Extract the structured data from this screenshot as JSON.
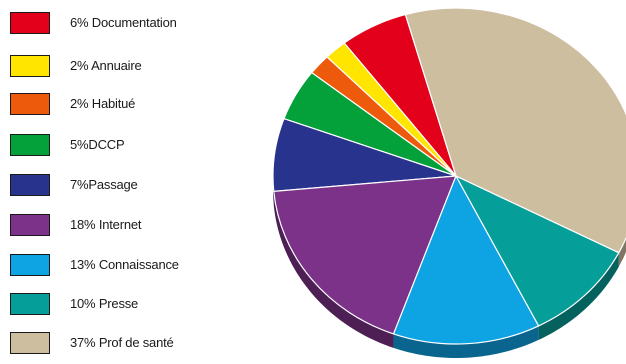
{
  "chart_data": {
    "type": "pie",
    "title": "",
    "legend_placement": "left",
    "three_d": true,
    "slices": [
      {
        "label": "6% Documentation",
        "value": 6,
        "color": "#e3001b"
      },
      {
        "label": "2% Annuaire",
        "value": 2,
        "color": "#ffe500"
      },
      {
        "label": "2% Habitué",
        "value": 2,
        "color": "#ee5a0c"
      },
      {
        "label": "5%DCCP",
        "value": 5,
        "color": "#04a03a"
      },
      {
        "label": "7%Passage",
        "value": 7,
        "color": "#28338e"
      },
      {
        "label": "18% Internet",
        "value": 18,
        "color": "#7c3289"
      },
      {
        "label": "13% Connaissance",
        "value": 13,
        "color": "#0ea3e3"
      },
      {
        "label": "10% Presse",
        "value": 10,
        "color": "#069e98"
      },
      {
        "label": "37% Prof de santé",
        "value": 37,
        "color": "#cdbea0"
      }
    ]
  }
}
